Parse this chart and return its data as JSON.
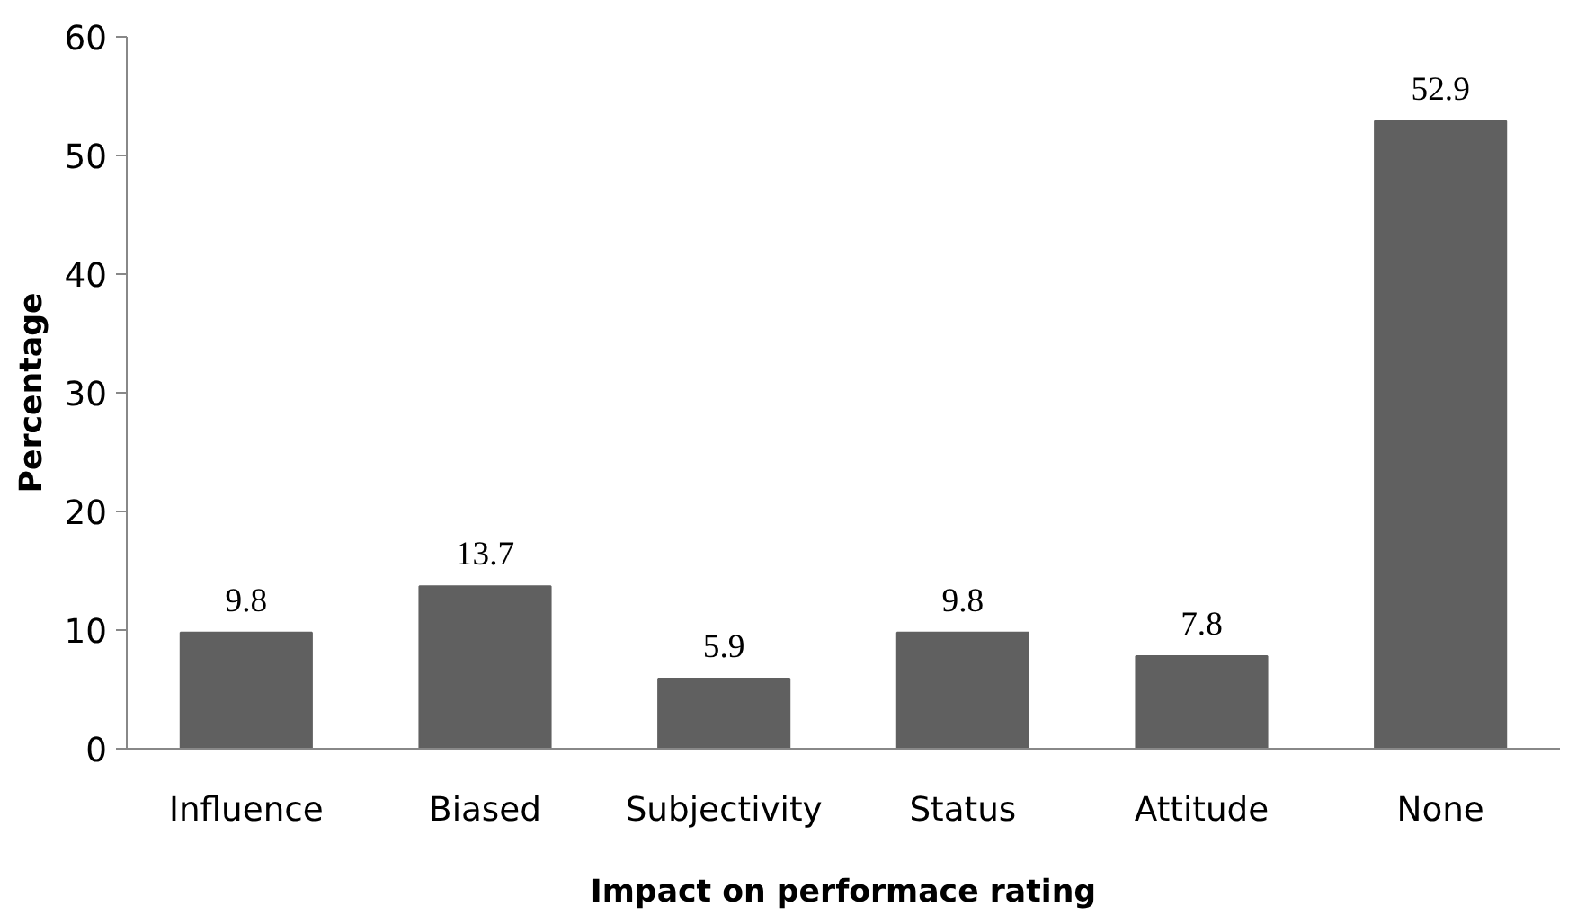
{
  "chart_data": {
    "type": "bar",
    "xlabel": "Impact on performace rating",
    "ylabel": "Percentage",
    "categories": [
      "Influence",
      "Biased",
      "Subjectivity",
      "Status",
      "Attitude",
      "None"
    ],
    "values": [
      9.8,
      13.7,
      5.9,
      9.8,
      7.8,
      52.9
    ],
    "color": "#606060",
    "ylim": [
      0,
      60
    ],
    "yticks": [
      0,
      10,
      20,
      30,
      40,
      50,
      60
    ],
    "grid": false,
    "data_labels": true
  }
}
